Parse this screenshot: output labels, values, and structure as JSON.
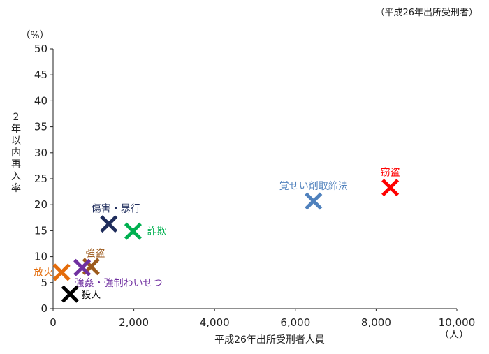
{
  "chart_data": {
    "type": "scatter",
    "note": "（平成26年出所受刑者）",
    "xlabel": "平成26年出所受刑者人員",
    "ylabel": "2年以内再入率",
    "x_unit": "（人）",
    "y_unit": "（%）",
    "xlim": [
      0,
      10000
    ],
    "ylim": [
      0,
      50
    ],
    "x_ticks": [
      0,
      2000,
      4000,
      6000,
      8000,
      10000
    ],
    "x_tick_labels": [
      "0",
      "2,000",
      "4,000",
      "6,000",
      "8,000",
      "10,000"
    ],
    "y_ticks": [
      0,
      5,
      10,
      15,
      20,
      25,
      30,
      35,
      40,
      45,
      50
    ],
    "y_tick_labels": [
      "0",
      "5",
      "10",
      "15",
      "20",
      "25",
      "30",
      "35",
      "40",
      "45",
      "50"
    ],
    "grid": false,
    "points": [
      {
        "name": "窃盗",
        "x": 8350,
        "y": 23.3,
        "color": "#ff0000"
      },
      {
        "name": "覚せい剤取締法",
        "x": 6450,
        "y": 20.7,
        "color": "#4f81bd"
      },
      {
        "name": "傷害・暴行",
        "x": 1380,
        "y": 16.3,
        "color": "#1f2d5c"
      },
      {
        "name": "詐欺",
        "x": 1980,
        "y": 14.9,
        "color": "#00b050"
      },
      {
        "name": "強盗",
        "x": 940,
        "y": 8.1,
        "color": "#9c5a1c"
      },
      {
        "name": "強姦・強制わいせつ",
        "x": 720,
        "y": 7.9,
        "color": "#7030a0"
      },
      {
        "name": "放火",
        "x": 210,
        "y": 7.0,
        "color": "#e46c0a"
      },
      {
        "name": "殺人",
        "x": 420,
        "y": 2.8,
        "color": "#000000"
      }
    ]
  }
}
